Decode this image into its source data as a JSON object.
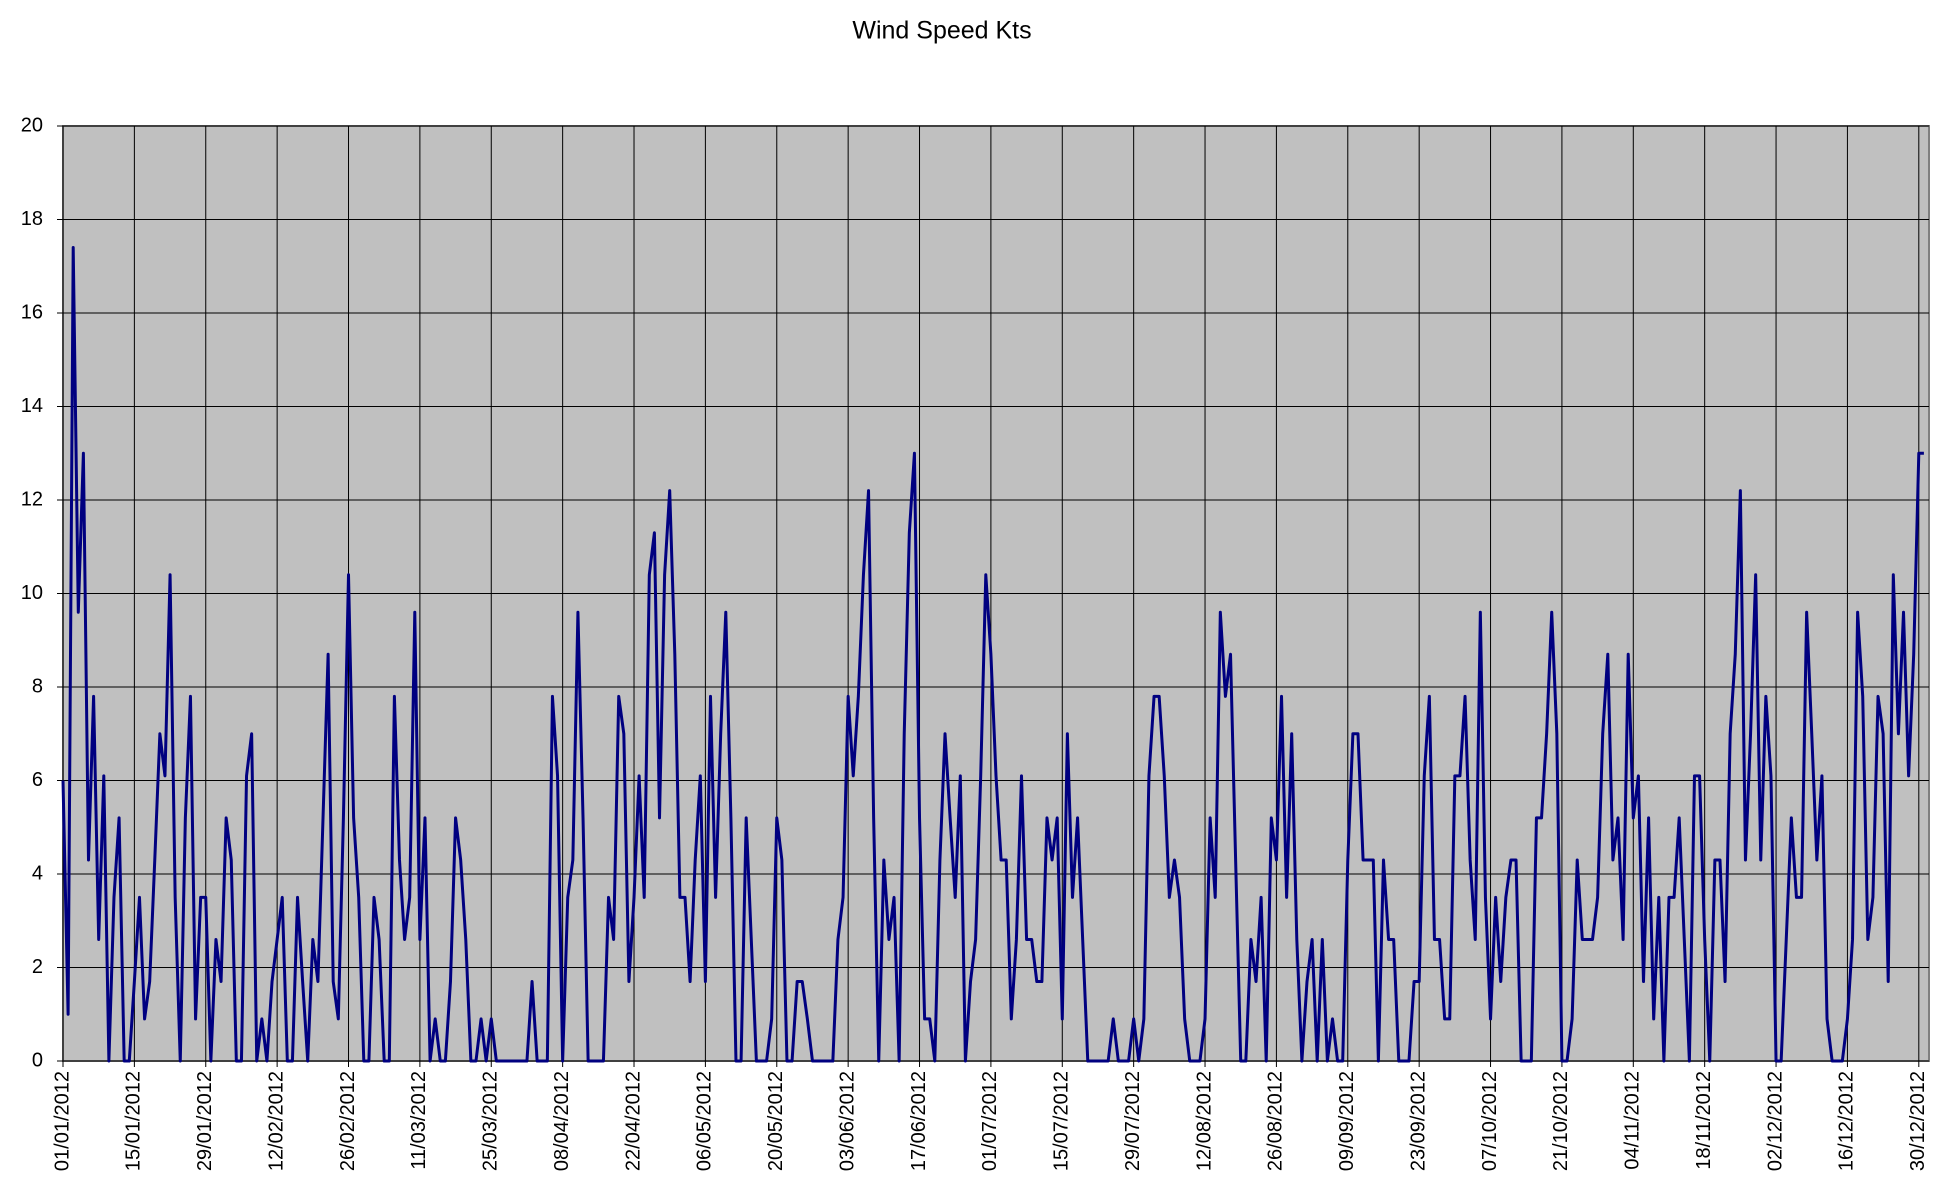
{
  "chart_data": {
    "type": "line",
    "title": "Wind Speed Kts",
    "color": "#000080",
    "background": "#c0c0c0",
    "grid": true,
    "xlim": [
      "01/01/2012",
      "01/01/2013"
    ],
    "xticks": [
      "01/01/2012",
      "15/01/2012",
      "29/01/2012",
      "12/02/2012",
      "26/02/2012",
      "11/03/2012",
      "25/03/2012",
      "08/04/2012",
      "22/04/2012",
      "06/05/2012",
      "20/05/2012",
      "03/06/2012",
      "17/06/2012",
      "01/07/2012",
      "15/07/2012",
      "29/07/2012",
      "12/08/2012",
      "26/08/2012",
      "09/09/2012",
      "23/09/2012",
      "07/10/2012",
      "21/10/2012",
      "04/11/2012",
      "18/11/2012",
      "02/12/2012",
      "16/12/2012",
      "30/12/2012"
    ],
    "ylim": [
      0,
      20
    ],
    "yticks": [
      0,
      2,
      4,
      6,
      8,
      10,
      12,
      14,
      16,
      18,
      20
    ],
    "x": [
      "01/01/2012",
      "02/01/2012",
      "03/01/2012",
      "04/01/2012",
      "05/01/2012",
      "06/01/2012",
      "07/01/2012",
      "08/01/2012",
      "09/01/2012",
      "10/01/2012",
      "11/01/2012",
      "12/01/2012",
      "13/01/2012",
      "14/01/2012",
      "15/01/2012",
      "16/01/2012",
      "17/01/2012",
      "18/01/2012",
      "19/01/2012",
      "20/01/2012",
      "21/01/2012",
      "22/01/2012",
      "23/01/2012",
      "24/01/2012",
      "25/01/2012",
      "26/01/2012",
      "27/01/2012",
      "28/01/2012",
      "29/01/2012",
      "30/01/2012",
      "31/01/2012",
      "01/02/2012",
      "02/02/2012",
      "03/02/2012",
      "04/02/2012",
      "05/02/2012",
      "06/02/2012",
      "07/02/2012",
      "08/02/2012",
      "09/02/2012",
      "10/02/2012",
      "11/02/2012",
      "12/02/2012",
      "13/02/2012",
      "14/02/2012",
      "15/02/2012",
      "16/02/2012",
      "17/02/2012",
      "18/02/2012",
      "19/02/2012",
      "20/02/2012",
      "21/02/2012",
      "22/02/2012",
      "23/02/2012",
      "24/02/2012",
      "25/02/2012",
      "26/02/2012",
      "27/02/2012",
      "28/02/2012",
      "29/02/2012",
      "01/03/2012",
      "02/03/2012",
      "03/03/2012",
      "04/03/2012",
      "05/03/2012",
      "06/03/2012",
      "07/03/2012",
      "08/03/2012",
      "09/03/2012",
      "10/03/2012",
      "11/03/2012",
      "12/03/2012",
      "13/03/2012",
      "14/03/2012",
      "15/03/2012",
      "16/03/2012",
      "17/03/2012",
      "18/03/2012",
      "19/03/2012",
      "20/03/2012",
      "21/03/2012",
      "22/03/2012",
      "23/03/2012",
      "24/03/2012",
      "25/03/2012",
      "26/03/2012",
      "27/03/2012",
      "28/03/2012",
      "29/03/2012",
      "30/03/2012",
      "31/03/2012",
      "01/04/2012",
      "02/04/2012",
      "03/04/2012",
      "04/04/2012",
      "05/04/2012",
      "06/04/2012",
      "07/04/2012",
      "08/04/2012",
      "09/04/2012",
      "10/04/2012",
      "11/04/2012",
      "12/04/2012",
      "13/04/2012",
      "14/04/2012",
      "15/04/2012",
      "16/04/2012",
      "17/04/2012",
      "18/04/2012",
      "19/04/2012",
      "20/04/2012",
      "21/04/2012",
      "22/04/2012",
      "23/04/2012",
      "24/04/2012",
      "25/04/2012",
      "26/04/2012",
      "27/04/2012",
      "28/04/2012",
      "29/04/2012",
      "30/04/2012",
      "01/05/2012",
      "02/05/2012",
      "03/05/2012",
      "04/05/2012",
      "05/05/2012",
      "06/05/2012",
      "07/05/2012",
      "08/05/2012",
      "09/05/2012",
      "10/05/2012",
      "11/05/2012",
      "12/05/2012",
      "13/05/2012",
      "14/05/2012",
      "15/05/2012",
      "16/05/2012",
      "17/05/2012",
      "18/05/2012",
      "19/05/2012",
      "20/05/2012",
      "21/05/2012",
      "22/05/2012",
      "23/05/2012",
      "24/05/2012",
      "25/05/2012",
      "26/05/2012",
      "27/05/2012",
      "28/05/2012",
      "29/05/2012",
      "30/05/2012",
      "31/05/2012",
      "01/06/2012",
      "02/06/2012",
      "03/06/2012",
      "04/06/2012",
      "05/06/2012",
      "06/06/2012",
      "07/06/2012",
      "08/06/2012",
      "09/06/2012",
      "10/06/2012",
      "11/06/2012",
      "12/06/2012",
      "13/06/2012",
      "14/06/2012",
      "15/06/2012",
      "16/06/2012",
      "17/06/2012",
      "18/06/2012",
      "19/06/2012",
      "20/06/2012",
      "21/06/2012",
      "22/06/2012",
      "23/06/2012",
      "24/06/2012",
      "25/06/2012",
      "26/06/2012",
      "27/06/2012",
      "28/06/2012",
      "29/06/2012",
      "30/06/2012",
      "01/07/2012",
      "02/07/2012",
      "03/07/2012",
      "04/07/2012",
      "05/07/2012",
      "06/07/2012",
      "07/07/2012",
      "08/07/2012",
      "09/07/2012",
      "10/07/2012",
      "11/07/2012",
      "12/07/2012",
      "13/07/2012",
      "14/07/2012",
      "15/07/2012",
      "16/07/2012",
      "17/07/2012",
      "18/07/2012",
      "19/07/2012",
      "20/07/2012",
      "21/07/2012",
      "22/07/2012",
      "23/07/2012",
      "24/07/2012",
      "25/07/2012",
      "26/07/2012",
      "27/07/2012",
      "28/07/2012",
      "29/07/2012",
      "30/07/2012",
      "31/07/2012",
      "01/08/2012",
      "02/08/2012",
      "03/08/2012",
      "04/08/2012",
      "05/08/2012",
      "06/08/2012",
      "07/08/2012",
      "08/08/2012",
      "09/08/2012",
      "10/08/2012",
      "11/08/2012",
      "12/08/2012",
      "13/08/2012",
      "14/08/2012",
      "15/08/2012",
      "16/08/2012",
      "17/08/2012",
      "18/08/2012",
      "19/08/2012",
      "20/08/2012",
      "21/08/2012",
      "22/08/2012",
      "23/08/2012",
      "24/08/2012",
      "25/08/2012",
      "26/08/2012",
      "27/08/2012",
      "28/08/2012",
      "29/08/2012",
      "30/08/2012",
      "31/08/2012",
      "01/09/2012",
      "02/09/2012",
      "03/09/2012",
      "04/09/2012",
      "05/09/2012",
      "06/09/2012",
      "07/09/2012",
      "08/09/2012",
      "09/09/2012",
      "10/09/2012",
      "11/09/2012",
      "12/09/2012",
      "13/09/2012",
      "14/09/2012",
      "15/09/2012",
      "16/09/2012",
      "17/09/2012",
      "18/09/2012",
      "19/09/2012",
      "20/09/2012",
      "21/09/2012",
      "22/09/2012",
      "23/09/2012",
      "24/09/2012",
      "25/09/2012",
      "26/09/2012",
      "27/09/2012",
      "28/09/2012",
      "29/09/2012",
      "30/09/2012",
      "01/10/2012",
      "02/10/2012",
      "03/10/2012",
      "04/10/2012",
      "05/10/2012",
      "06/10/2012",
      "07/10/2012",
      "08/10/2012",
      "09/10/2012",
      "10/10/2012",
      "11/10/2012",
      "12/10/2012",
      "13/10/2012",
      "14/10/2012",
      "15/10/2012",
      "16/10/2012",
      "17/10/2012",
      "18/10/2012",
      "19/10/2012",
      "20/10/2012",
      "21/10/2012",
      "22/10/2012",
      "23/10/2012",
      "24/10/2012",
      "25/10/2012",
      "26/10/2012",
      "27/10/2012",
      "28/10/2012",
      "29/10/2012",
      "30/10/2012",
      "31/10/2012",
      "01/11/2012",
      "02/11/2012",
      "03/11/2012",
      "04/11/2012",
      "05/11/2012",
      "06/11/2012",
      "07/11/2012",
      "08/11/2012",
      "09/11/2012",
      "10/11/2012",
      "11/11/2012",
      "12/11/2012",
      "13/11/2012",
      "14/11/2012",
      "15/11/2012",
      "16/11/2012",
      "17/11/2012",
      "18/11/2012",
      "19/11/2012",
      "20/11/2012",
      "21/11/2012",
      "22/11/2012",
      "23/11/2012",
      "24/11/2012",
      "25/11/2012",
      "26/11/2012",
      "27/11/2012",
      "28/11/2012",
      "29/11/2012",
      "30/11/2012",
      "01/12/2012",
      "02/12/2012",
      "03/12/2012",
      "04/12/2012",
      "05/12/2012",
      "06/12/2012",
      "07/12/2012",
      "08/12/2012",
      "09/12/2012",
      "10/12/2012",
      "11/12/2012",
      "12/12/2012",
      "13/12/2012",
      "14/12/2012",
      "15/12/2012",
      "16/12/2012",
      "17/12/2012",
      "18/12/2012",
      "19/12/2012",
      "20/12/2012",
      "21/12/2012",
      "22/12/2012",
      "23/12/2012",
      "24/12/2012",
      "25/12/2012",
      "26/12/2012",
      "27/12/2012",
      "28/12/2012",
      "29/12/2012",
      "30/12/2012",
      "31/12/2012"
    ],
    "values": [
      6,
      1,
      17.4,
      9.6,
      13,
      4.3,
      7.8,
      2.6,
      6.1,
      0,
      3.5,
      5.2,
      0,
      0,
      1.7,
      3.5,
      0.9,
      1.7,
      4.3,
      7,
      6.1,
      10.4,
      3.5,
      0,
      5.2,
      7.8,
      0.9,
      3.5,
      3.5,
      0,
      2.6,
      1.7,
      5.2,
      4.3,
      0,
      0,
      6.1,
      7,
      0,
      0.9,
      0,
      1.7,
      2.6,
      3.5,
      0,
      0,
      3.5,
      1.7,
      0,
      2.6,
      1.7,
      5.2,
      8.7,
      1.7,
      0.9,
      5.2,
      10.4,
      5.2,
      3.5,
      0,
      0,
      3.5,
      2.6,
      0,
      0,
      7.8,
      4.3,
      2.6,
      3.5,
      9.6,
      2.6,
      5.2,
      0,
      0.9,
      0,
      0,
      1.7,
      5.2,
      4.3,
      2.6,
      0,
      0,
      0.9,
      0,
      0.9,
      0,
      0,
      0,
      0,
      0,
      0,
      0,
      1.7,
      0,
      0,
      0,
      7.8,
      6.1,
      0,
      3.5,
      4.3,
      9.6,
      5.2,
      0,
      0,
      0,
      0,
      3.5,
      2.6,
      7.8,
      7,
      1.7,
      3.5,
      6.1,
      3.5,
      10.4,
      11.3,
      5.2,
      10.4,
      12.2,
      8.7,
      3.5,
      3.5,
      1.7,
      4.3,
      6.1,
      1.7,
      7.8,
      3.5,
      7,
      9.6,
      5.2,
      0,
      0,
      5.2,
      2.6,
      0,
      0,
      0,
      0.9,
      5.2,
      4.3,
      0,
      0,
      1.7,
      1.7,
      0.9,
      0,
      0,
      0,
      0,
      0,
      2.6,
      3.5,
      7.8,
      6.1,
      7.8,
      10.4,
      12.2,
      5.2,
      0,
      4.3,
      2.6,
      3.5,
      0,
      7,
      11.3,
      13,
      5.2,
      0.9,
      0.9,
      0,
      4.3,
      7,
      5.2,
      3.5,
      6.1,
      0,
      1.7,
      2.6,
      6.1,
      10.4,
      8.7,
      6.1,
      4.3,
      4.3,
      0.9,
      2.6,
      6.1,
      2.6,
      2.6,
      1.7,
      1.7,
      5.2,
      4.3,
      5.2,
      0.9,
      7,
      3.5,
      5.2,
      2.6,
      0,
      0,
      0,
      0,
      0,
      0.9,
      0,
      0,
      0,
      0.9,
      0,
      0.9,
      6.1,
      7.8,
      7.8,
      6.1,
      3.5,
      4.3,
      3.5,
      0.9,
      0,
      0,
      0,
      0.9,
      5.2,
      3.5,
      9.6,
      7.8,
      8.7,
      4.3,
      0,
      0,
      2.6,
      1.7,
      3.5,
      0,
      5.2,
      4.3,
      7.8,
      3.5,
      7,
      2.6,
      0,
      1.7,
      2.6,
      0,
      2.6,
      0,
      0.9,
      0,
      0,
      4.3,
      7,
      7,
      4.3,
      4.3,
      4.3,
      0,
      4.3,
      2.6,
      2.6,
      0,
      0,
      0,
      1.7,
      1.7,
      6.1,
      7.8,
      2.6,
      2.6,
      0.9,
      0.9,
      6.1,
      6.1,
      7.8,
      4.3,
      2.6,
      9.6,
      3.5,
      0.9,
      3.5,
      1.7,
      3.5,
      4.3,
      4.3,
      0,
      0,
      0,
      5.2,
      5.2,
      7,
      9.6,
      7,
      0,
      0,
      0.9,
      4.3,
      2.6,
      2.6,
      2.6,
      3.5,
      7,
      8.7,
      4.3,
      5.2,
      2.6,
      8.7,
      5.2,
      6.1,
      1.7,
      5.2,
      0.9,
      3.5,
      0,
      3.5,
      3.5,
      5.2,
      2.6,
      0,
      6.1,
      6.1,
      2.6,
      0,
      4.3,
      4.3,
      1.7,
      7,
      8.7,
      12.2,
      4.3,
      7,
      10.4,
      4.3,
      7.8,
      6.1,
      0,
      0,
      2.6,
      5.2,
      3.5,
      3.5,
      9.6,
      7,
      4.3,
      6.1,
      0.9,
      0,
      0,
      0,
      0.9,
      2.6,
      9.6,
      7.8,
      2.6,
      3.5,
      7.8,
      7,
      1.7,
      10.4,
      7,
      9.6,
      6.1,
      8.7,
      13,
      13
    ]
  }
}
